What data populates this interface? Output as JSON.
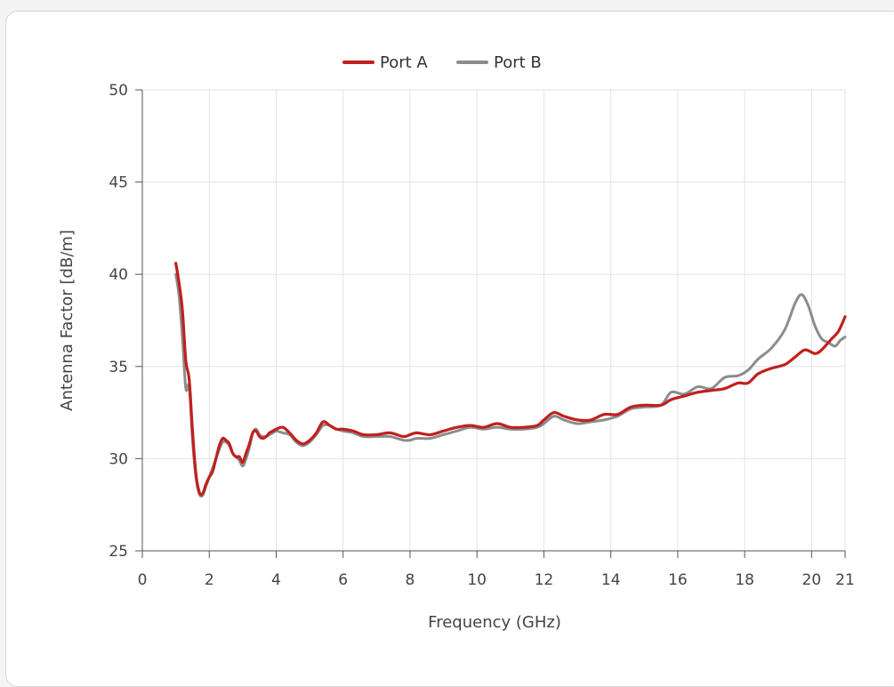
{
  "chart_data": {
    "type": "line",
    "xlabel": "Frequency (GHz)",
    "ylabel": "Antenna Factor [dB/m]",
    "xlim": [
      0,
      21
    ],
    "ylim": [
      25,
      50
    ],
    "x_ticks": [
      0,
      2,
      4,
      6,
      8,
      10,
      12,
      14,
      16,
      18,
      20,
      21
    ],
    "y_ticks": [
      25,
      30,
      35,
      40,
      45,
      50
    ],
    "grid": true,
    "legend_position": "top-center",
    "series": [
      {
        "name": "Port A",
        "color": "#c0201e",
        "points": [
          [
            1.0,
            40.6
          ],
          [
            1.1,
            39.5
          ],
          [
            1.2,
            38.0
          ],
          [
            1.3,
            35.3
          ],
          [
            1.4,
            34.3
          ],
          [
            1.5,
            31.5
          ],
          [
            1.6,
            29.2
          ],
          [
            1.7,
            28.2
          ],
          [
            1.8,
            28.1
          ],
          [
            1.9,
            28.6
          ],
          [
            2.0,
            29.0
          ],
          [
            2.1,
            29.3
          ],
          [
            2.2,
            30.0
          ],
          [
            2.3,
            30.7
          ],
          [
            2.4,
            31.1
          ],
          [
            2.5,
            31.0
          ],
          [
            2.6,
            30.8
          ],
          [
            2.7,
            30.3
          ],
          [
            2.8,
            30.1
          ],
          [
            2.9,
            30.1
          ],
          [
            3.0,
            29.8
          ],
          [
            3.1,
            30.3
          ],
          [
            3.2,
            30.8
          ],
          [
            3.3,
            31.4
          ],
          [
            3.4,
            31.5
          ],
          [
            3.5,
            31.2
          ],
          [
            3.6,
            31.1
          ],
          [
            3.7,
            31.2
          ],
          [
            3.8,
            31.4
          ],
          [
            3.9,
            31.5
          ],
          [
            4.0,
            31.6
          ],
          [
            4.2,
            31.7
          ],
          [
            4.4,
            31.4
          ],
          [
            4.6,
            31.0
          ],
          [
            4.8,
            30.8
          ],
          [
            5.0,
            31.0
          ],
          [
            5.2,
            31.4
          ],
          [
            5.4,
            32.0
          ],
          [
            5.6,
            31.8
          ],
          [
            5.8,
            31.6
          ],
          [
            6.0,
            31.6
          ],
          [
            6.3,
            31.5
          ],
          [
            6.6,
            31.3
          ],
          [
            7.0,
            31.3
          ],
          [
            7.4,
            31.4
          ],
          [
            7.8,
            31.2
          ],
          [
            8.0,
            31.3
          ],
          [
            8.2,
            31.4
          ],
          [
            8.6,
            31.3
          ],
          [
            9.0,
            31.5
          ],
          [
            9.4,
            31.7
          ],
          [
            9.8,
            31.8
          ],
          [
            10.2,
            31.7
          ],
          [
            10.6,
            31.9
          ],
          [
            11.0,
            31.7
          ],
          [
            11.4,
            31.7
          ],
          [
            11.8,
            31.8
          ],
          [
            12.0,
            32.1
          ],
          [
            12.3,
            32.5
          ],
          [
            12.6,
            32.3
          ],
          [
            13.0,
            32.1
          ],
          [
            13.4,
            32.1
          ],
          [
            13.8,
            32.4
          ],
          [
            14.2,
            32.4
          ],
          [
            14.6,
            32.8
          ],
          [
            15.0,
            32.9
          ],
          [
            15.5,
            32.9
          ],
          [
            15.8,
            33.2
          ],
          [
            16.2,
            33.4
          ],
          [
            16.6,
            33.6
          ],
          [
            17.0,
            33.7
          ],
          [
            17.4,
            33.8
          ],
          [
            17.8,
            34.1
          ],
          [
            18.1,
            34.1
          ],
          [
            18.4,
            34.6
          ],
          [
            18.8,
            34.9
          ],
          [
            19.2,
            35.1
          ],
          [
            19.5,
            35.5
          ],
          [
            19.8,
            35.9
          ],
          [
            20.1,
            35.7
          ],
          [
            20.3,
            35.9
          ],
          [
            20.6,
            36.5
          ],
          [
            20.8,
            36.9
          ],
          [
            21.0,
            37.7
          ]
        ]
      },
      {
        "name": "Port B",
        "color": "#8c8c8c",
        "points": [
          [
            1.0,
            40.0
          ],
          [
            1.1,
            38.8
          ],
          [
            1.2,
            36.5
          ],
          [
            1.3,
            33.8
          ],
          [
            1.4,
            33.9
          ],
          [
            1.5,
            31.0
          ],
          [
            1.6,
            29.0
          ],
          [
            1.7,
            28.1
          ],
          [
            1.8,
            28.0
          ],
          [
            1.9,
            28.5
          ],
          [
            2.0,
            29.0
          ],
          [
            2.1,
            29.5
          ],
          [
            2.2,
            30.0
          ],
          [
            2.3,
            30.5
          ],
          [
            2.4,
            30.9
          ],
          [
            2.5,
            30.9
          ],
          [
            2.6,
            30.7
          ],
          [
            2.7,
            30.3
          ],
          [
            2.8,
            30.1
          ],
          [
            2.9,
            29.9
          ],
          [
            3.0,
            29.6
          ],
          [
            3.1,
            30.0
          ],
          [
            3.2,
            30.6
          ],
          [
            3.3,
            31.4
          ],
          [
            3.4,
            31.6
          ],
          [
            3.5,
            31.3
          ],
          [
            3.6,
            31.2
          ],
          [
            3.7,
            31.2
          ],
          [
            3.8,
            31.3
          ],
          [
            3.9,
            31.4
          ],
          [
            4.0,
            31.5
          ],
          [
            4.2,
            31.4
          ],
          [
            4.4,
            31.3
          ],
          [
            4.6,
            30.9
          ],
          [
            4.8,
            30.7
          ],
          [
            5.0,
            30.9
          ],
          [
            5.2,
            31.3
          ],
          [
            5.4,
            31.8
          ],
          [
            5.6,
            31.8
          ],
          [
            5.8,
            31.6
          ],
          [
            6.0,
            31.5
          ],
          [
            6.3,
            31.4
          ],
          [
            6.6,
            31.2
          ],
          [
            7.0,
            31.2
          ],
          [
            7.4,
            31.2
          ],
          [
            7.8,
            31.0
          ],
          [
            8.0,
            31.0
          ],
          [
            8.2,
            31.1
          ],
          [
            8.6,
            31.1
          ],
          [
            9.0,
            31.3
          ],
          [
            9.4,
            31.5
          ],
          [
            9.8,
            31.7
          ],
          [
            10.2,
            31.6
          ],
          [
            10.6,
            31.7
          ],
          [
            11.0,
            31.6
          ],
          [
            11.4,
            31.6
          ],
          [
            11.8,
            31.7
          ],
          [
            12.0,
            31.9
          ],
          [
            12.3,
            32.3
          ],
          [
            12.6,
            32.1
          ],
          [
            13.0,
            31.9
          ],
          [
            13.4,
            32.0
          ],
          [
            13.8,
            32.1
          ],
          [
            14.2,
            32.3
          ],
          [
            14.6,
            32.7
          ],
          [
            15.0,
            32.8
          ],
          [
            15.5,
            32.9
          ],
          [
            15.8,
            33.6
          ],
          [
            16.2,
            33.5
          ],
          [
            16.6,
            33.9
          ],
          [
            17.0,
            33.8
          ],
          [
            17.4,
            34.4
          ],
          [
            17.8,
            34.5
          ],
          [
            18.1,
            34.8
          ],
          [
            18.4,
            35.4
          ],
          [
            18.8,
            36.0
          ],
          [
            19.2,
            37.0
          ],
          [
            19.5,
            38.4
          ],
          [
            19.7,
            38.9
          ],
          [
            19.9,
            38.3
          ],
          [
            20.1,
            37.2
          ],
          [
            20.3,
            36.5
          ],
          [
            20.5,
            36.3
          ],
          [
            20.7,
            36.1
          ],
          [
            20.85,
            36.4
          ],
          [
            21.0,
            36.6
          ]
        ]
      }
    ]
  }
}
